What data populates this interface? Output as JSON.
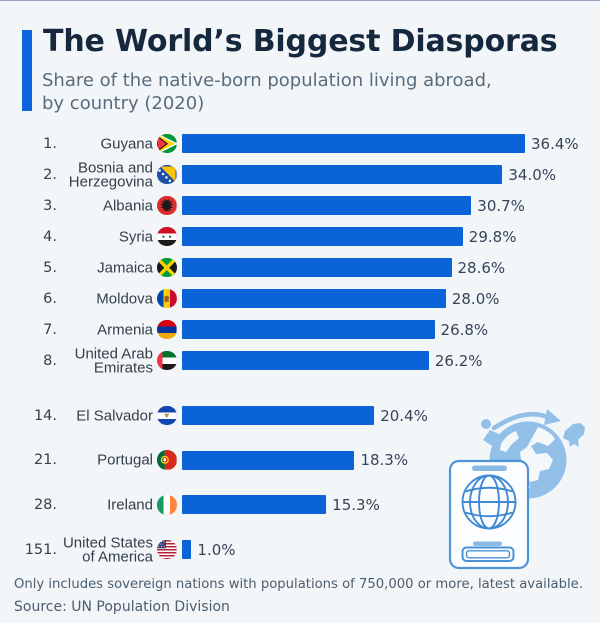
{
  "page": {
    "background": "#f2f6f8",
    "accent_color": "#0e64dc",
    "bar_color": "#0a64d8"
  },
  "header": {
    "title": "The World’s Biggest Diasporas",
    "subtitle_line1": "Share of the native-born population living abroad,",
    "subtitle_line2": "by country (2020)"
  },
  "chart_data": {
    "type": "bar",
    "orientation": "horizontal",
    "title": "The World’s Biggest Diasporas",
    "subtitle": "Share of the native-born population living abroad, by country (2020)",
    "unit": "%",
    "xlim": [
      0,
      36.4
    ],
    "grid": false,
    "legend": false,
    "categories": [
      "Guyana",
      "Bosnia and Herzegovina",
      "Albania",
      "Syria",
      "Jamaica",
      "Moldova",
      "Armenia",
      "United Arab Emirates",
      "El Salvador",
      "Portugal",
      "Ireland",
      "United States of America"
    ],
    "values": [
      36.4,
      34.0,
      30.7,
      29.8,
      28.6,
      28.0,
      26.8,
      26.2,
      20.4,
      18.3,
      15.3,
      1.0
    ],
    "rows": [
      {
        "rank": "1.",
        "country_lines": [
          "Guyana"
        ],
        "flag": "guyana-flag-icon",
        "value": 36.4,
        "label": "36.4%",
        "group": 0
      },
      {
        "rank": "2.",
        "country_lines": [
          "Bosnia and",
          "Herzegovina"
        ],
        "flag": "bosnia-flag-icon",
        "value": 34.0,
        "label": "34.0%",
        "group": 0
      },
      {
        "rank": "3.",
        "country_lines": [
          "Albania"
        ],
        "flag": "albania-flag-icon",
        "value": 30.7,
        "label": "30.7%",
        "group": 0
      },
      {
        "rank": "4.",
        "country_lines": [
          "Syria"
        ],
        "flag": "syria-flag-icon",
        "value": 29.8,
        "label": "29.8%",
        "group": 0
      },
      {
        "rank": "5.",
        "country_lines": [
          "Jamaica"
        ],
        "flag": "jamaica-flag-icon",
        "value": 28.6,
        "label": "28.6%",
        "group": 0
      },
      {
        "rank": "6.",
        "country_lines": [
          "Moldova"
        ],
        "flag": "moldova-flag-icon",
        "value": 28.0,
        "label": "28.0%",
        "group": 0
      },
      {
        "rank": "7.",
        "country_lines": [
          "Armenia"
        ],
        "flag": "armenia-flag-icon",
        "value": 26.8,
        "label": "26.8%",
        "group": 0
      },
      {
        "rank": "8.",
        "country_lines": [
          "United Arab",
          "Emirates"
        ],
        "flag": "uae-flag-icon",
        "value": 26.2,
        "label": "26.2%",
        "group": 0
      },
      {
        "rank": "14.",
        "country_lines": [
          "El Salvador"
        ],
        "flag": "el-salvador-flag-icon",
        "value": 20.4,
        "label": "20.4%",
        "group": 1
      },
      {
        "rank": "21.",
        "country_lines": [
          "Portugal"
        ],
        "flag": "portugal-flag-icon",
        "value": 18.3,
        "label": "18.3%",
        "group": 1
      },
      {
        "rank": "28.",
        "country_lines": [
          "Ireland"
        ],
        "flag": "ireland-flag-icon",
        "value": 15.3,
        "label": "15.3%",
        "group": 1
      },
      {
        "rank": "151.",
        "country_lines": [
          "United States",
          "of America"
        ],
        "flag": "usa-flag-icon",
        "value": 1.0,
        "label": "1.0%",
        "group": 1
      }
    ]
  },
  "footer": {
    "note": "Only includes sovereign nations with populations of 750,000 or more, latest available.",
    "source": "Source: UN Population Division"
  },
  "illustration": {
    "name": "passport-globe-travel-illustration",
    "fill_color": "#93c0e9",
    "stroke_color": "#4a90d8"
  }
}
